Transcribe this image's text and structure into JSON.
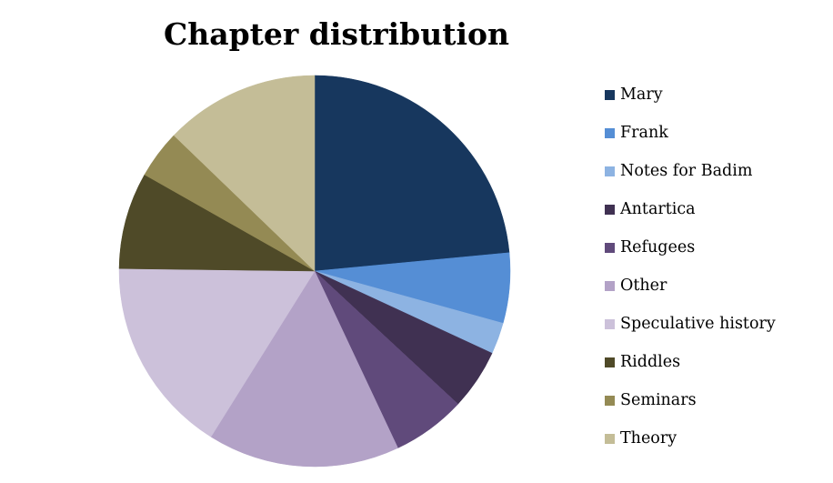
{
  "chart_data": {
    "type": "pie",
    "title": "Chapter distribution",
    "legend_position": "right",
    "start_angle": "12 o'clock",
    "direction": "clockwise",
    "slices": [
      {
        "label": "Mary",
        "value": 23.5,
        "color": "#17375e"
      },
      {
        "label": "Frank",
        "value": 5.8,
        "color": "#558ed5"
      },
      {
        "label": "Notes for Badim",
        "value": 2.6,
        "color": "#8db3e2"
      },
      {
        "label": "Antartica",
        "value": 5.0,
        "color": "#403152"
      },
      {
        "label": "Refugees",
        "value": 6.1,
        "color": "#604a7b"
      },
      {
        "label": "Other",
        "value": 15.9,
        "color": "#b3a2c7"
      },
      {
        "label": "Speculative history",
        "value": 16.3,
        "color": "#ccc1da"
      },
      {
        "label": "Riddles",
        "value": 8.0,
        "color": "#4f4a28"
      },
      {
        "label": "Seminars",
        "value": 4.0,
        "color": "#948a54"
      },
      {
        "label": "Theory",
        "value": 12.8,
        "color": "#c4bd97"
      }
    ]
  }
}
